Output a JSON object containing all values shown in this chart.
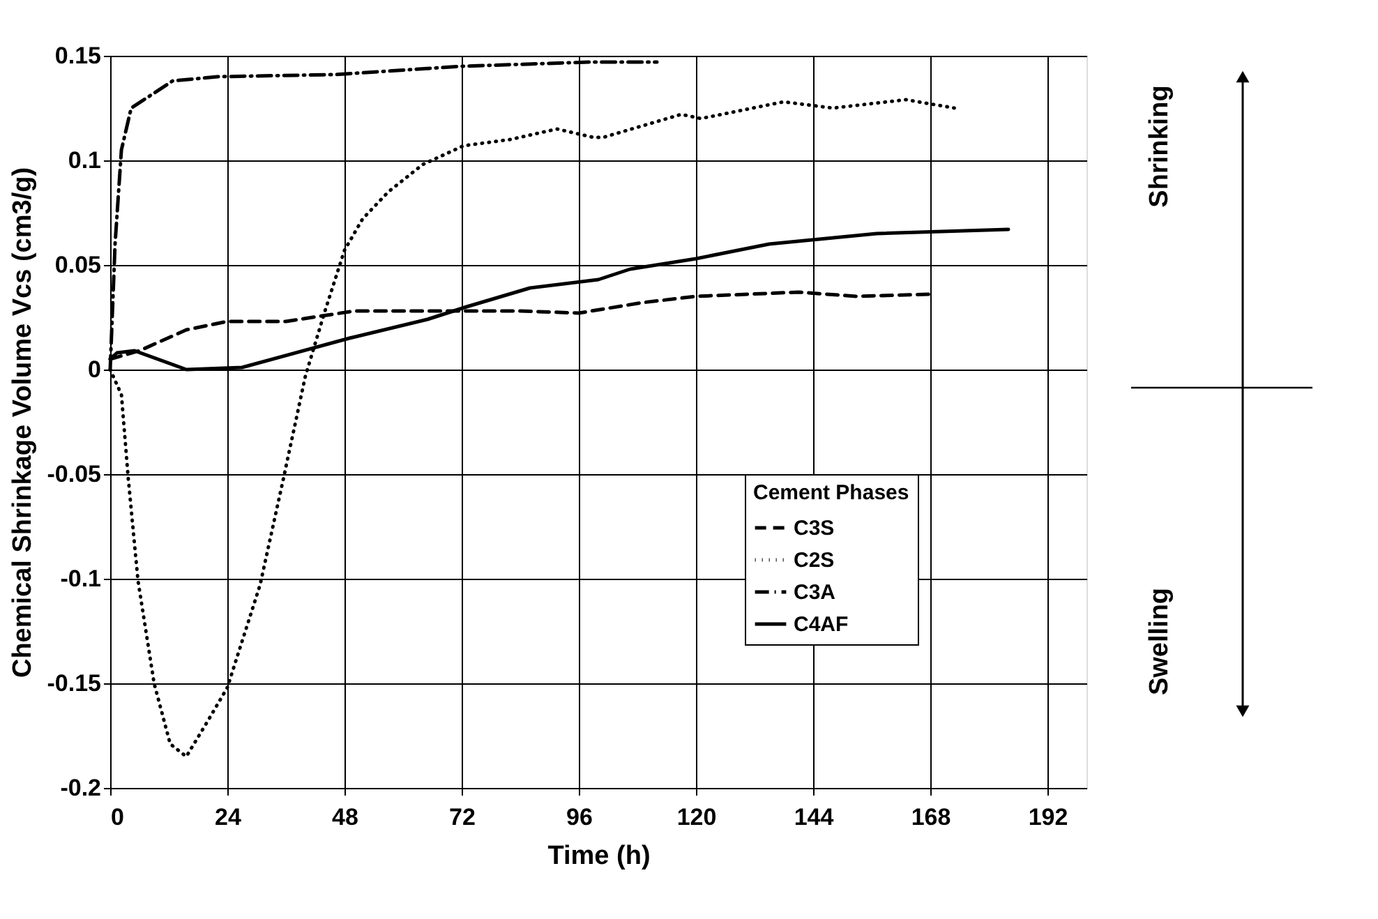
{
  "chart_data": {
    "type": "line",
    "xlabel": "Time  (h)",
    "ylabel": "Chemical Shrinkage Volume Vcs  (cm3/g)",
    "legend_title": "Cement Phases",
    "legend": "bottom right",
    "grid": true,
    "marker": "none",
    "xlim": [
      0,
      200
    ],
    "xticks": [
      0,
      24,
      48,
      72,
      96,
      120,
      144,
      168,
      192
    ],
    "ylim": [
      -0.2,
      0.15
    ],
    "yticks": [
      -0.2,
      -0.15,
      -0.1,
      -0.05,
      0,
      0.05,
      0.1,
      0.15
    ],
    "annotations": [
      "Shrinking",
      "Swelling"
    ],
    "series": [
      {
        "name": "C3S",
        "color": "#000000",
        "line_style": "dashed",
        "x": [
          0,
          6,
          15.6,
          24,
          36,
          50,
          65,
          84,
          96,
          109,
          120,
          141,
          153,
          168
        ],
        "values": [
          0.005,
          0.009,
          0.019,
          0.023,
          0.023,
          0.028,
          0.028,
          0.028,
          0.027,
          0.032,
          0.035,
          0.037,
          0.035,
          0.036
        ]
      },
      {
        "name": "C2S",
        "color": "#000000",
        "line_style": "dotted",
        "x": [
          0,
          2.3,
          3.7,
          5.7,
          9,
          12.3,
          15.6,
          20,
          24,
          30.7,
          35.5,
          40,
          44,
          48,
          51.7,
          57,
          64,
          72.4,
          82,
          91.5,
          99,
          101,
          117,
          121,
          138,
          148,
          163,
          173
        ],
        "values": [
          0,
          -0.012,
          -0.052,
          -0.101,
          -0.15,
          -0.179,
          -0.185,
          -0.168,
          -0.152,
          -0.103,
          -0.052,
          -0.003,
          0.028,
          0.057,
          0.072,
          0.085,
          0.098,
          0.107,
          0.11,
          0.115,
          0.111,
          0.111,
          0.122,
          0.12,
          0.128,
          0.125,
          0.129,
          0.125
        ]
      },
      {
        "name": "C3A",
        "color": "#000000",
        "line_style": "dashdot",
        "x": [
          0,
          1,
          2.3,
          4.3,
          12.8,
          22,
          46,
          72,
          98,
          112
        ],
        "values": [
          0,
          0.06,
          0.105,
          0.125,
          0.138,
          0.14,
          0.141,
          0.145,
          0.147,
          0.147
        ]
      },
      {
        "name": "C4AF",
        "color": "#000000",
        "line_style": "solid",
        "x": [
          0,
          1.4,
          5,
          15.6,
          27,
          49,
          65,
          73,
          86,
          100,
          106.5,
          120,
          135,
          157,
          184
        ],
        "values": [
          0.005,
          0.008,
          0.009,
          0,
          0.001,
          0.015,
          0.024,
          0.03,
          0.039,
          0.043,
          0.048,
          0.053,
          0.06,
          0.065,
          0.067
        ]
      }
    ]
  }
}
